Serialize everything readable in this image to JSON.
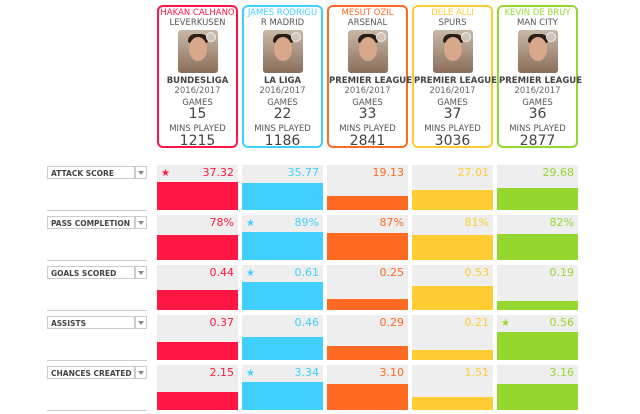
{
  "players": [
    {
      "name": "HAKAN CALHANO",
      "club": "LEVERKUSEN",
      "league": "BUNDESLIGA",
      "season": "2016/2017",
      "games_label": "GAMES",
      "games": "15",
      "mins_label": "MINS PLAYED",
      "mins": "1215",
      "color": "#ff1744"
    },
    {
      "name": "JAMES RODRIGU",
      "club": "R MADRID",
      "league": "LA LIGA",
      "season": "2016/2017",
      "games_label": "GAMES",
      "games": "22",
      "mins_label": "MINS PLAYED",
      "mins": "1186",
      "color": "#40cfff"
    },
    {
      "name": "MESUT ÖZIL",
      "club": "ARSENAL",
      "league": "PREMIER LEAGUE",
      "season": "2016/2017",
      "games_label": "GAMES",
      "games": "33",
      "mins_label": "MINS PLAYED",
      "mins": "2841",
      "color": "#ff6a22"
    },
    {
      "name": "DELE ALLI",
      "club": "SPURS",
      "league": "PREMIER LEAGUE",
      "season": "2016/2017",
      "games_label": "GAMES",
      "games": "37",
      "mins_label": "MINS PLAYED",
      "mins": "3036",
      "color": "#ffcc33"
    },
    {
      "name": "KEVIN DE BRUY",
      "club": "MAN CITY",
      "league": "PREMIER LEAGUE",
      "season": "2016/2017",
      "games_label": "GAMES",
      "games": "36",
      "mins_label": "MINS PLAYED",
      "mins": "2877",
      "color": "#96d72f"
    }
  ],
  "metrics": [
    {
      "label": "ATTACK SCORE",
      "values": [
        "37.32",
        "35.77",
        "19.13",
        "27.01",
        "29.68"
      ],
      "nums": [
        37.32,
        35.77,
        19.13,
        27.01,
        29.68
      ],
      "best": 0
    },
    {
      "label": "PASS COMPLETION",
      "values": [
        "78%",
        "89%",
        "87%",
        "81%",
        "82%"
      ],
      "nums": [
        78,
        89,
        87,
        81,
        82
      ],
      "best": 1
    },
    {
      "label": "GOALS SCORED",
      "values": [
        "0.44",
        "0.61",
        "0.25",
        "0.53",
        "0.19"
      ],
      "nums": [
        0.44,
        0.61,
        0.25,
        0.53,
        0.19
      ],
      "best": 1
    },
    {
      "label": "ASSISTS",
      "values": [
        "0.37",
        "0.46",
        "0.29",
        "0.21",
        "0.56"
      ],
      "nums": [
        0.37,
        0.46,
        0.29,
        0.21,
        0.56
      ],
      "best": 4
    },
    {
      "label": "CHANCES CREATED",
      "values": [
        "2.15",
        "3.34",
        "3.10",
        "1.51",
        "3.16"
      ],
      "nums": [
        2.15,
        3.34,
        3.1,
        1.51,
        3.16
      ],
      "best": 1
    }
  ],
  "star_icon": "★"
}
